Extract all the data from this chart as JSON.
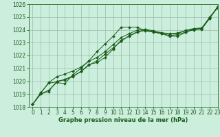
{
  "title": "Graphe pression niveau de la mer (hPa)",
  "background_color": "#cceedd",
  "grid_color": "#99bbaa",
  "line_color": "#1a5c1a",
  "xlim": [
    -0.5,
    23
  ],
  "ylim": [
    1018,
    1026
  ],
  "yticks": [
    1018,
    1019,
    1020,
    1021,
    1022,
    1023,
    1024,
    1025,
    1026
  ],
  "xticks": [
    0,
    1,
    2,
    3,
    4,
    5,
    6,
    7,
    8,
    9,
    10,
    11,
    12,
    13,
    14,
    15,
    16,
    17,
    18,
    19,
    20,
    21,
    22,
    23
  ],
  "series": [
    [
      1018.2,
      1019.0,
      1019.3,
      1019.9,
      1019.8,
      1020.5,
      1021.0,
      1021.6,
      1022.3,
      1022.9,
      1023.5,
      1024.2,
      1024.2,
      1024.2,
      1023.9,
      1023.85,
      1023.7,
      1023.5,
      1023.5,
      1023.8,
      1024.05,
      1024.1,
      1025.0,
      1025.7
    ],
    [
      1018.2,
      1019.1,
      1019.85,
      1019.95,
      1020.15,
      1020.4,
      1020.75,
      1021.25,
      1021.6,
      1022.1,
      1022.6,
      1023.1,
      1023.55,
      1023.85,
      1024.0,
      1023.85,
      1023.75,
      1023.65,
      1023.72,
      1023.92,
      1024.05,
      1024.1,
      1024.9,
      1025.8
    ],
    [
      1018.2,
      1019.0,
      1019.2,
      1020.0,
      1020.1,
      1020.35,
      1020.75,
      1021.3,
      1021.45,
      1021.85,
      1022.5,
      1023.2,
      1023.5,
      1023.82,
      1023.95,
      1023.82,
      1023.7,
      1023.55,
      1023.62,
      1023.82,
      1024.0,
      1024.05,
      1024.9,
      1025.8
    ],
    [
      1018.2,
      1019.05,
      1019.9,
      1020.35,
      1020.55,
      1020.8,
      1021.1,
      1021.55,
      1021.85,
      1022.3,
      1022.85,
      1023.4,
      1023.7,
      1023.98,
      1024.05,
      1023.92,
      1023.78,
      1023.7,
      1023.75,
      1023.95,
      1024.1,
      1024.15,
      1024.95,
      1025.82
    ]
  ],
  "title_fontsize": 6,
  "tick_fontsize": 5.5,
  "ylabel_fontsize": 5.5
}
